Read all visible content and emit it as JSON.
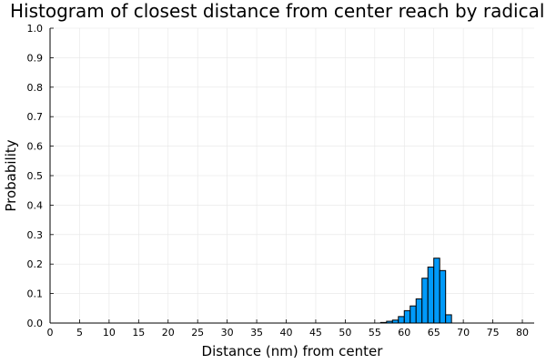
{
  "chart_data": {
    "type": "bar",
    "title": "Histogram of closest distance from center reach by radical",
    "xlabel": "Distance (nm) from center",
    "ylabel": "Probability",
    "xlim": [
      0,
      82
    ],
    "ylim": [
      0,
      1.0
    ],
    "x_ticks": [
      "0",
      "5",
      "10",
      "15",
      "20",
      "25",
      "30",
      "35",
      "40",
      "45",
      "50",
      "55",
      "60",
      "65",
      "70",
      "75",
      "80"
    ],
    "y_ticks": [
      "0.0",
      "0.1",
      "0.2",
      "0.3",
      "0.4",
      "0.5",
      "0.6",
      "0.7",
      "0.8",
      "0.9",
      "1.0"
    ],
    "grid": true,
    "legend": "none",
    "bar_color": "#009AFA",
    "bin_width": 1,
    "bins": [
      {
        "x": 56,
        "value": 0.002
      },
      {
        "x": 57,
        "value": 0.006
      },
      {
        "x": 58,
        "value": 0.01
      },
      {
        "x": 59,
        "value": 0.022
      },
      {
        "x": 60,
        "value": 0.042
      },
      {
        "x": 61,
        "value": 0.058
      },
      {
        "x": 62,
        "value": 0.082
      },
      {
        "x": 63,
        "value": 0.152
      },
      {
        "x": 64,
        "value": 0.19
      },
      {
        "x": 65,
        "value": 0.22
      },
      {
        "x": 66,
        "value": 0.178
      },
      {
        "x": 67,
        "value": 0.028
      }
    ]
  }
}
